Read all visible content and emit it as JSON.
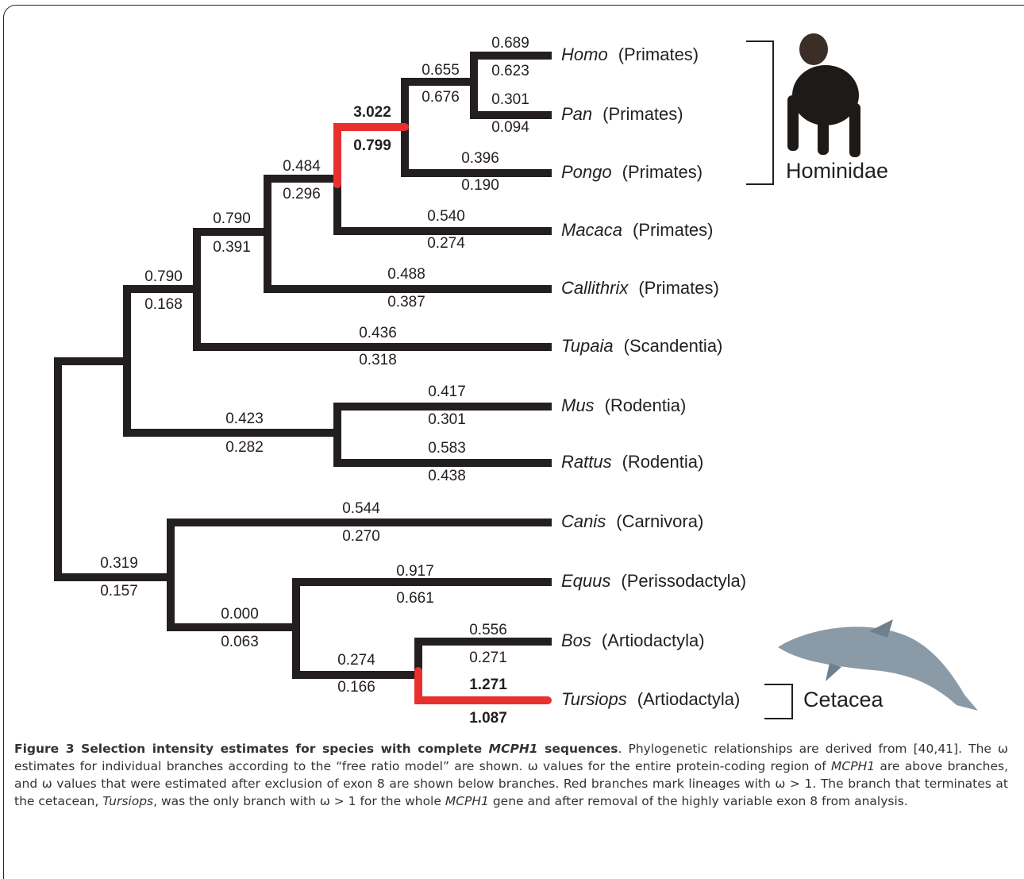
{
  "tips": [
    {
      "genus": "Homo",
      "order": "(Primates)"
    },
    {
      "genus": "Pan",
      "order": "(Primates)"
    },
    {
      "genus": "Pongo",
      "order": "(Primates)"
    },
    {
      "genus": "Macaca",
      "order": "(Primates)"
    },
    {
      "genus": "Callithrix",
      "order": "(Primates)"
    },
    {
      "genus": "Tupaia",
      "order": "(Scandentia)"
    },
    {
      "genus": "Mus",
      "order": "(Rodentia)"
    },
    {
      "genus": "Rattus",
      "order": "(Rodentia)"
    },
    {
      "genus": "Canis",
      "order": "(Carnivora)"
    },
    {
      "genus": "Equus",
      "order": "(Perissodactyla)"
    },
    {
      "genus": "Bos",
      "order": "(Artiodactyla)"
    },
    {
      "genus": "Tursiops",
      "order": "(Artiodactyla)"
    }
  ],
  "branches": [
    {
      "above": "0.689",
      "below": "0.623"
    },
    {
      "above": "0.301",
      "below": "0.094"
    },
    {
      "above": "0.655",
      "below": "0.676"
    },
    {
      "above": "0.396",
      "below": "0.190"
    },
    {
      "above": "3.022",
      "below": "0.799"
    },
    {
      "above": "0.540",
      "below": "0.274"
    },
    {
      "above": "0.484",
      "below": "0.296"
    },
    {
      "above": "0.488",
      "below": "0.387"
    },
    {
      "above": "0.790",
      "below": "0.391"
    },
    {
      "above": "0.436",
      "below": "0.318"
    },
    {
      "above": "0.790",
      "below": "0.168"
    },
    {
      "above": "0.423",
      "below": "0.282"
    },
    {
      "above": "0.417",
      "below": "0.301"
    },
    {
      "above": "0.583",
      "below": "0.438"
    },
    {
      "above": "0.319",
      "below": "0.157"
    },
    {
      "above": "0.544",
      "below": "0.270"
    },
    {
      "above": "0.000",
      "below": "0.063"
    },
    {
      "above": "0.917",
      "below": "0.661"
    },
    {
      "above": "0.274",
      "below": "0.166"
    },
    {
      "above": "0.556",
      "below": "0.271"
    },
    {
      "above": "1.271",
      "below": "1.087"
    }
  ],
  "groups": [
    "Hominidae",
    "Cetacea"
  ],
  "caption": [
    "Figure 3 Selection intensity estimates for species with complete ",
    "MCPH1",
    " sequences",
    ". Phylogenetic relationships are derived from [40,41]. The ω estimates for individual branches according to the “free ratio model” are shown. ω values for the entire protein-coding region of ",
    "MCPH1",
    " are above branches, and ω values that were estimated after exclusion of exon 8 are shown below branches. Red branches mark lineages with ω > 1. The branch that terminates at the cetacean, ",
    "Tursiops",
    ", was the only branch with ω > 1 for the whole ",
    "MCPH1",
    " gene and after removal of the highly variable exon 8 from analysis."
  ]
}
